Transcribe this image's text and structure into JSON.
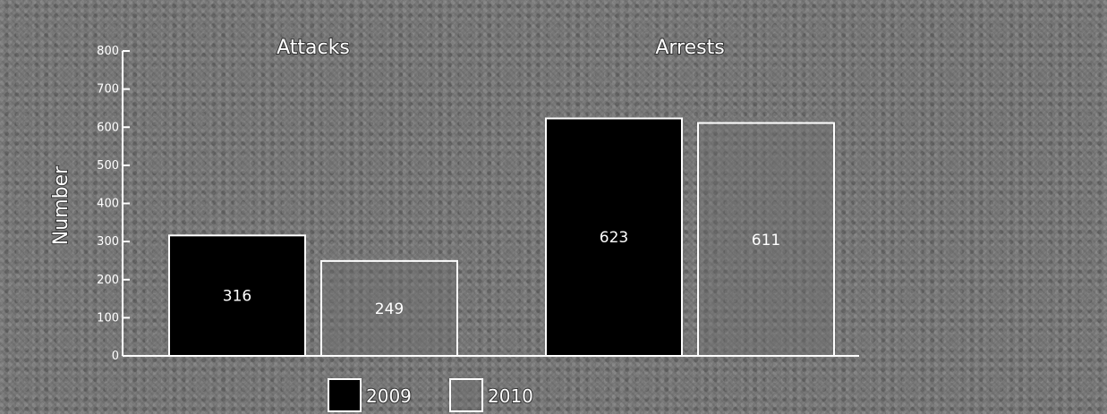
{
  "chart_data": {
    "type": "bar",
    "categories": [
      "Attacks",
      "Arrests"
    ],
    "series": [
      {
        "name": "2009",
        "values": [
          316,
          623
        ],
        "color": "#000000"
      },
      {
        "name": "2010",
        "values": [
          249,
          611
        ],
        "color": "#6e6e6e"
      }
    ],
    "ylabel": "Number",
    "xlabel": "",
    "ylim": [
      0,
      800
    ],
    "yticks": [
      0,
      100,
      200,
      300,
      400,
      500,
      600,
      700,
      800
    ],
    "legend_position": "bottom-center",
    "grid": false
  }
}
